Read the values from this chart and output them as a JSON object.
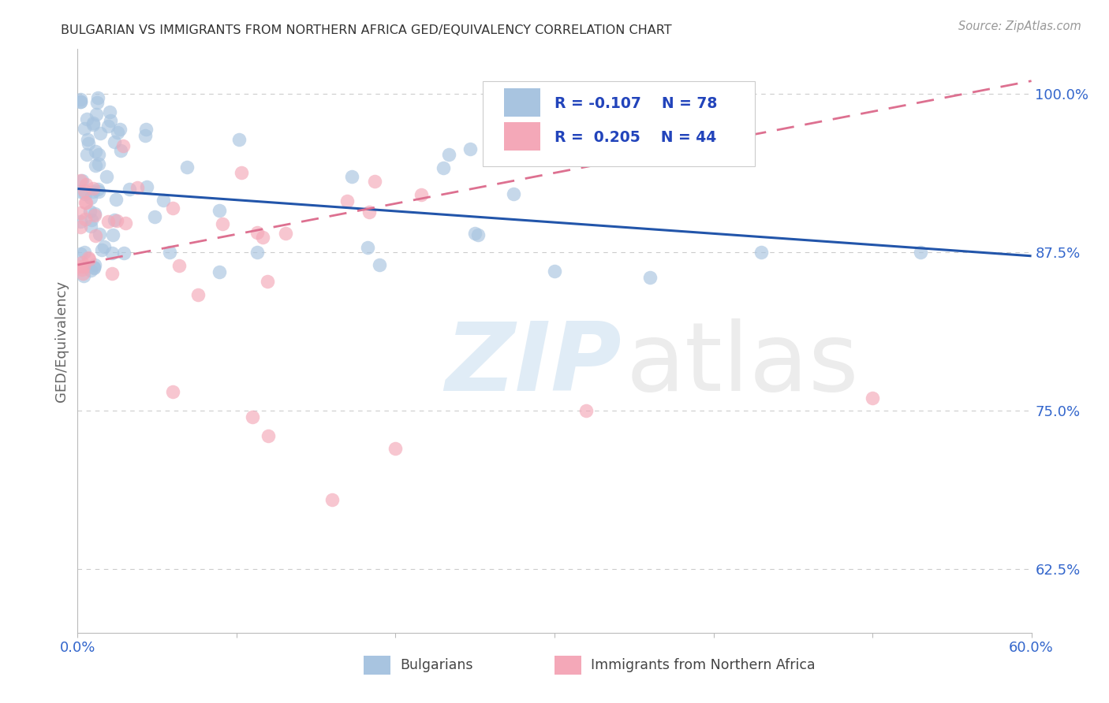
{
  "title": "BULGARIAN VS IMMIGRANTS FROM NORTHERN AFRICA GED/EQUIVALENCY CORRELATION CHART",
  "source": "Source: ZipAtlas.com",
  "ylabel": "GED/Equivalency",
  "xmin": 0.0,
  "xmax": 0.6,
  "ymin": 0.575,
  "ymax": 1.035,
  "yticks": [
    0.625,
    0.75,
    0.875,
    1.0
  ],
  "ytick_labels": [
    "62.5%",
    "75.0%",
    "87.5%",
    "100.0%"
  ],
  "blue_R": -0.107,
  "blue_N": 78,
  "pink_R": 0.205,
  "pink_N": 44,
  "blue_color": "#A8C4E0",
  "pink_color": "#F4A8B8",
  "blue_line_color": "#2255AA",
  "pink_line_color": "#DD7090",
  "legend_label_blue": "Bulgarians",
  "legend_label_pink": "Immigrants from Northern Africa",
  "blue_line_y0": 0.925,
  "blue_line_y1": 0.872,
  "pink_line_y0": 0.865,
  "pink_line_y1": 1.01,
  "background_color": "#FFFFFF",
  "grid_color": "#CCCCCC"
}
